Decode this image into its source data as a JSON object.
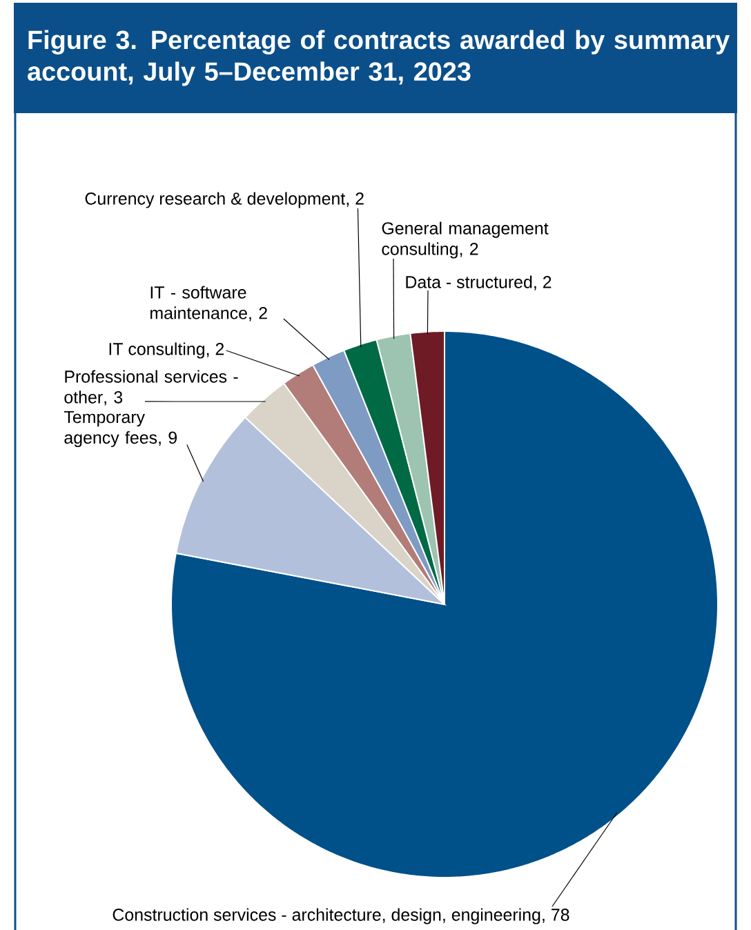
{
  "chart_data": {
    "type": "pie",
    "title": "Figure 3. Percentage of contracts awarded by summary account, July 5–December 31, 2023",
    "categories": [
      "Construction services - architecture, design, engineering",
      "Temporary agency fees",
      "Professional services - other",
      "IT consulting",
      "IT - software maintenance",
      "Currency research & development",
      "General management consulting",
      "Data - structured"
    ],
    "values": [
      78,
      9,
      3,
      2,
      2,
      2,
      2,
      2
    ],
    "colors": [
      "#00508a",
      "#b3c0dc",
      "#d9d3c8",
      "#b27c79",
      "#7e9bc4",
      "#006a45",
      "#9dc4b1",
      "#6e1b26"
    ],
    "data_labels": true,
    "value_labels": [
      ", 78",
      ", 9",
      ", 3",
      ", 2",
      ", 2",
      ", 2",
      ", 2",
      ", 2"
    ]
  }
}
